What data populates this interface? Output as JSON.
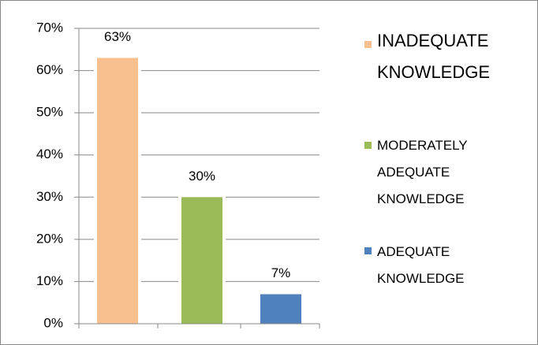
{
  "chart_data": {
    "type": "bar",
    "categories": [
      "INADEQUATE KNOWLEDGE",
      "MODERATELY ADEQUATE KNOWLEDGE",
      "ADEQUATE KNOWLEDGE"
    ],
    "values": [
      63,
      30,
      7
    ],
    "value_labels": [
      "63%",
      "30%",
      "7%"
    ],
    "colors": [
      "#f9c08f",
      "#9bbb59",
      "#4f81bd"
    ],
    "ylim": [
      0,
      70
    ],
    "yticks": [
      {
        "value": 0,
        "label": "0%"
      },
      {
        "value": 10,
        "label": "10%"
      },
      {
        "value": 20,
        "label": "20%"
      },
      {
        "value": 30,
        "label": "30%"
      },
      {
        "value": 40,
        "label": "40%"
      },
      {
        "value": 50,
        "label": "50%"
      },
      {
        "value": 60,
        "label": "60%"
      },
      {
        "value": 70,
        "label": "70%"
      }
    ],
    "grid": true,
    "legend": "right"
  }
}
